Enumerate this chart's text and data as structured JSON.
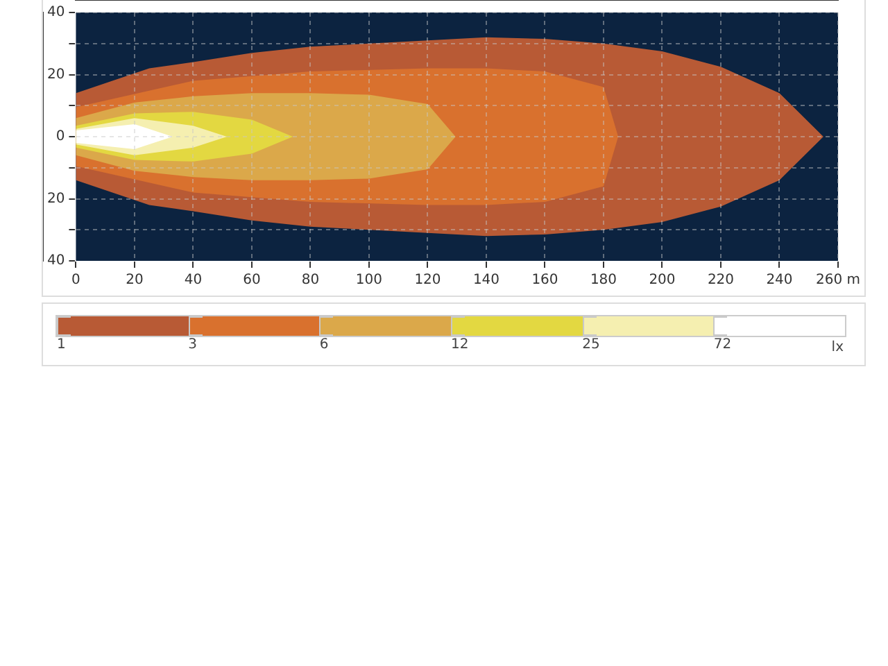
{
  "chart_data": {
    "type": "area",
    "xlim": [
      0,
      260
    ],
    "ylim": [
      -40,
      40
    ],
    "xticks": [
      0,
      20,
      40,
      60,
      80,
      100,
      120,
      140,
      160,
      180,
      200,
      220,
      240,
      {
        "value": 260,
        "label": "260 m"
      }
    ],
    "yticks": [
      {
        "value": -40,
        "label": "40"
      },
      {
        "value": -30,
        "label": null
      },
      {
        "value": -20,
        "label": "20"
      },
      {
        "value": -10,
        "label": null
      },
      0,
      {
        "value": 10,
        "label": null
      },
      20,
      {
        "value": 30,
        "label": null
      },
      40
    ],
    "grid": true,
    "legend": "bottom",
    "legend_title": "lx",
    "series": [
      {
        "name": "1",
        "color": "#b85a35",
        "x": [
          0,
          25,
          40,
          60,
          80,
          100,
          120,
          140,
          160,
          180,
          200,
          220,
          240,
          255,
          240,
          220,
          200,
          180,
          160,
          140,
          120,
          100,
          80,
          60,
          40,
          25,
          0
        ],
        "values": [
          14,
          22,
          24,
          27,
          29,
          30,
          31,
          32,
          31.5,
          30,
          27.5,
          22.5,
          14,
          0,
          -14,
          -22.5,
          -27.5,
          -30,
          -31.5,
          -32,
          -31,
          -30,
          -29,
          -27,
          -24,
          -22,
          -14
        ]
      },
      {
        "name": "3",
        "color": "#d9712e",
        "x": [
          0,
          40,
          80,
          120,
          140,
          160,
          180,
          185,
          180,
          160,
          140,
          120,
          80,
          40,
          0
        ],
        "values": [
          9.5,
          18,
          21,
          22,
          22,
          21,
          16,
          0,
          -16,
          -21,
          -22,
          -22,
          -21,
          -18,
          -9.5
        ]
      },
      {
        "name": "6",
        "color": "#dba84a",
        "x": [
          0,
          20,
          40,
          60,
          80,
          100,
          120,
          129.5,
          120,
          100,
          80,
          60,
          40,
          20,
          0
        ],
        "values": [
          6,
          11,
          13,
          14,
          14,
          13.5,
          10.5,
          0,
          -10.5,
          -13.5,
          -14,
          -14,
          -13,
          -11,
          -6
        ]
      },
      {
        "name": "12",
        "color": "#e3d841",
        "x": [
          0,
          20,
          40,
          60,
          74,
          60,
          40,
          20,
          0
        ],
        "values": [
          3.5,
          7.5,
          8,
          5.5,
          0,
          -5.5,
          -8,
          -7.5,
          -3.5
        ]
      },
      {
        "name": "25",
        "color": "#f5efb0",
        "x": [
          0,
          20,
          40,
          51.5,
          40,
          20,
          0
        ],
        "values": [
          2.5,
          6,
          3.5,
          0,
          -3.5,
          -6,
          -2.5
        ]
      },
      {
        "name": "72",
        "color": "#ffffff",
        "x": [
          0,
          20,
          33,
          20,
          0
        ],
        "values": [
          2,
          4,
          0,
          -4,
          -2
        ]
      }
    ]
  }
}
